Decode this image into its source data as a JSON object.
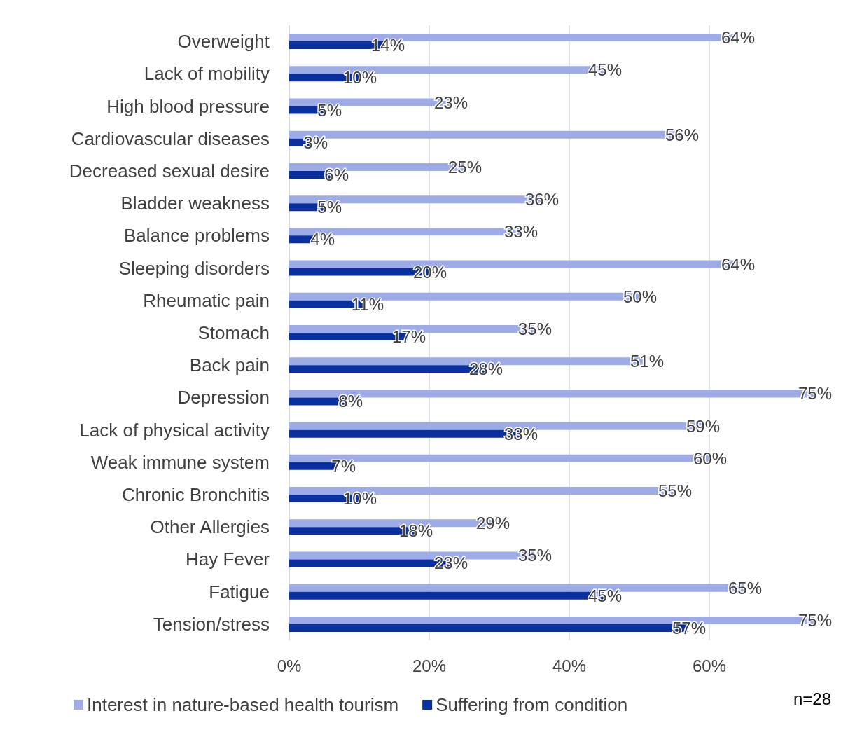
{
  "chart_data": {
    "type": "bar",
    "orientation": "horizontal",
    "categories": [
      "Overweight",
      "Lack of mobility",
      "High blood pressure",
      "Cardiovascular diseases",
      "Decreased sexual desire",
      "Bladder weakness",
      "Balance problems",
      "Sleeping disorders",
      "Rheumatic pain",
      "Stomach",
      "Back pain",
      "Depression",
      "Lack of physical activity",
      "Weak immune system",
      "Chronic Bronchitis",
      "Other Allergies",
      "Hay Fever",
      "Fatigue",
      "Tension/stress"
    ],
    "series": [
      {
        "name": "Interest in nature-based health tourism",
        "color": "#9dabe6",
        "values": [
          64,
          45,
          23,
          56,
          25,
          36,
          33,
          64,
          50,
          35,
          51,
          75,
          59,
          60,
          55,
          29,
          35,
          65,
          75
        ],
        "value_labels": [
          "64%",
          "45%",
          "23%",
          "56%",
          "25%",
          "36%",
          "33%",
          "64%",
          "50%",
          "35%",
          "51%",
          "75%",
          "59%",
          "60%",
          "55%",
          "29%",
          "35%",
          "65%",
          "75%"
        ]
      },
      {
        "name": "Suffering from condition",
        "color": "#0a2f9e",
        "values": [
          14,
          10,
          5,
          3,
          6,
          5,
          4,
          20,
          11,
          17,
          28,
          8,
          33,
          7,
          10,
          18,
          23,
          45,
          57
        ],
        "value_labels": [
          "14%",
          "10%",
          "5%",
          "3%",
          "6%",
          "5%",
          "4%",
          "20%",
          "11%",
          "17%",
          "28%",
          "8%",
          "33%",
          "7%",
          "10%",
          "18%",
          "23%",
          "45%",
          "57%"
        ]
      }
    ],
    "xlim": [
      0,
      75
    ],
    "xticks": [
      {
        "value": 0,
        "label": "0%"
      },
      {
        "value": 20,
        "label": "20%"
      },
      {
        "value": 40,
        "label": "40%"
      },
      {
        "value": 60,
        "label": "60%"
      }
    ],
    "grid": "x",
    "legend": "bottom",
    "annotations": [
      "n=28"
    ]
  }
}
